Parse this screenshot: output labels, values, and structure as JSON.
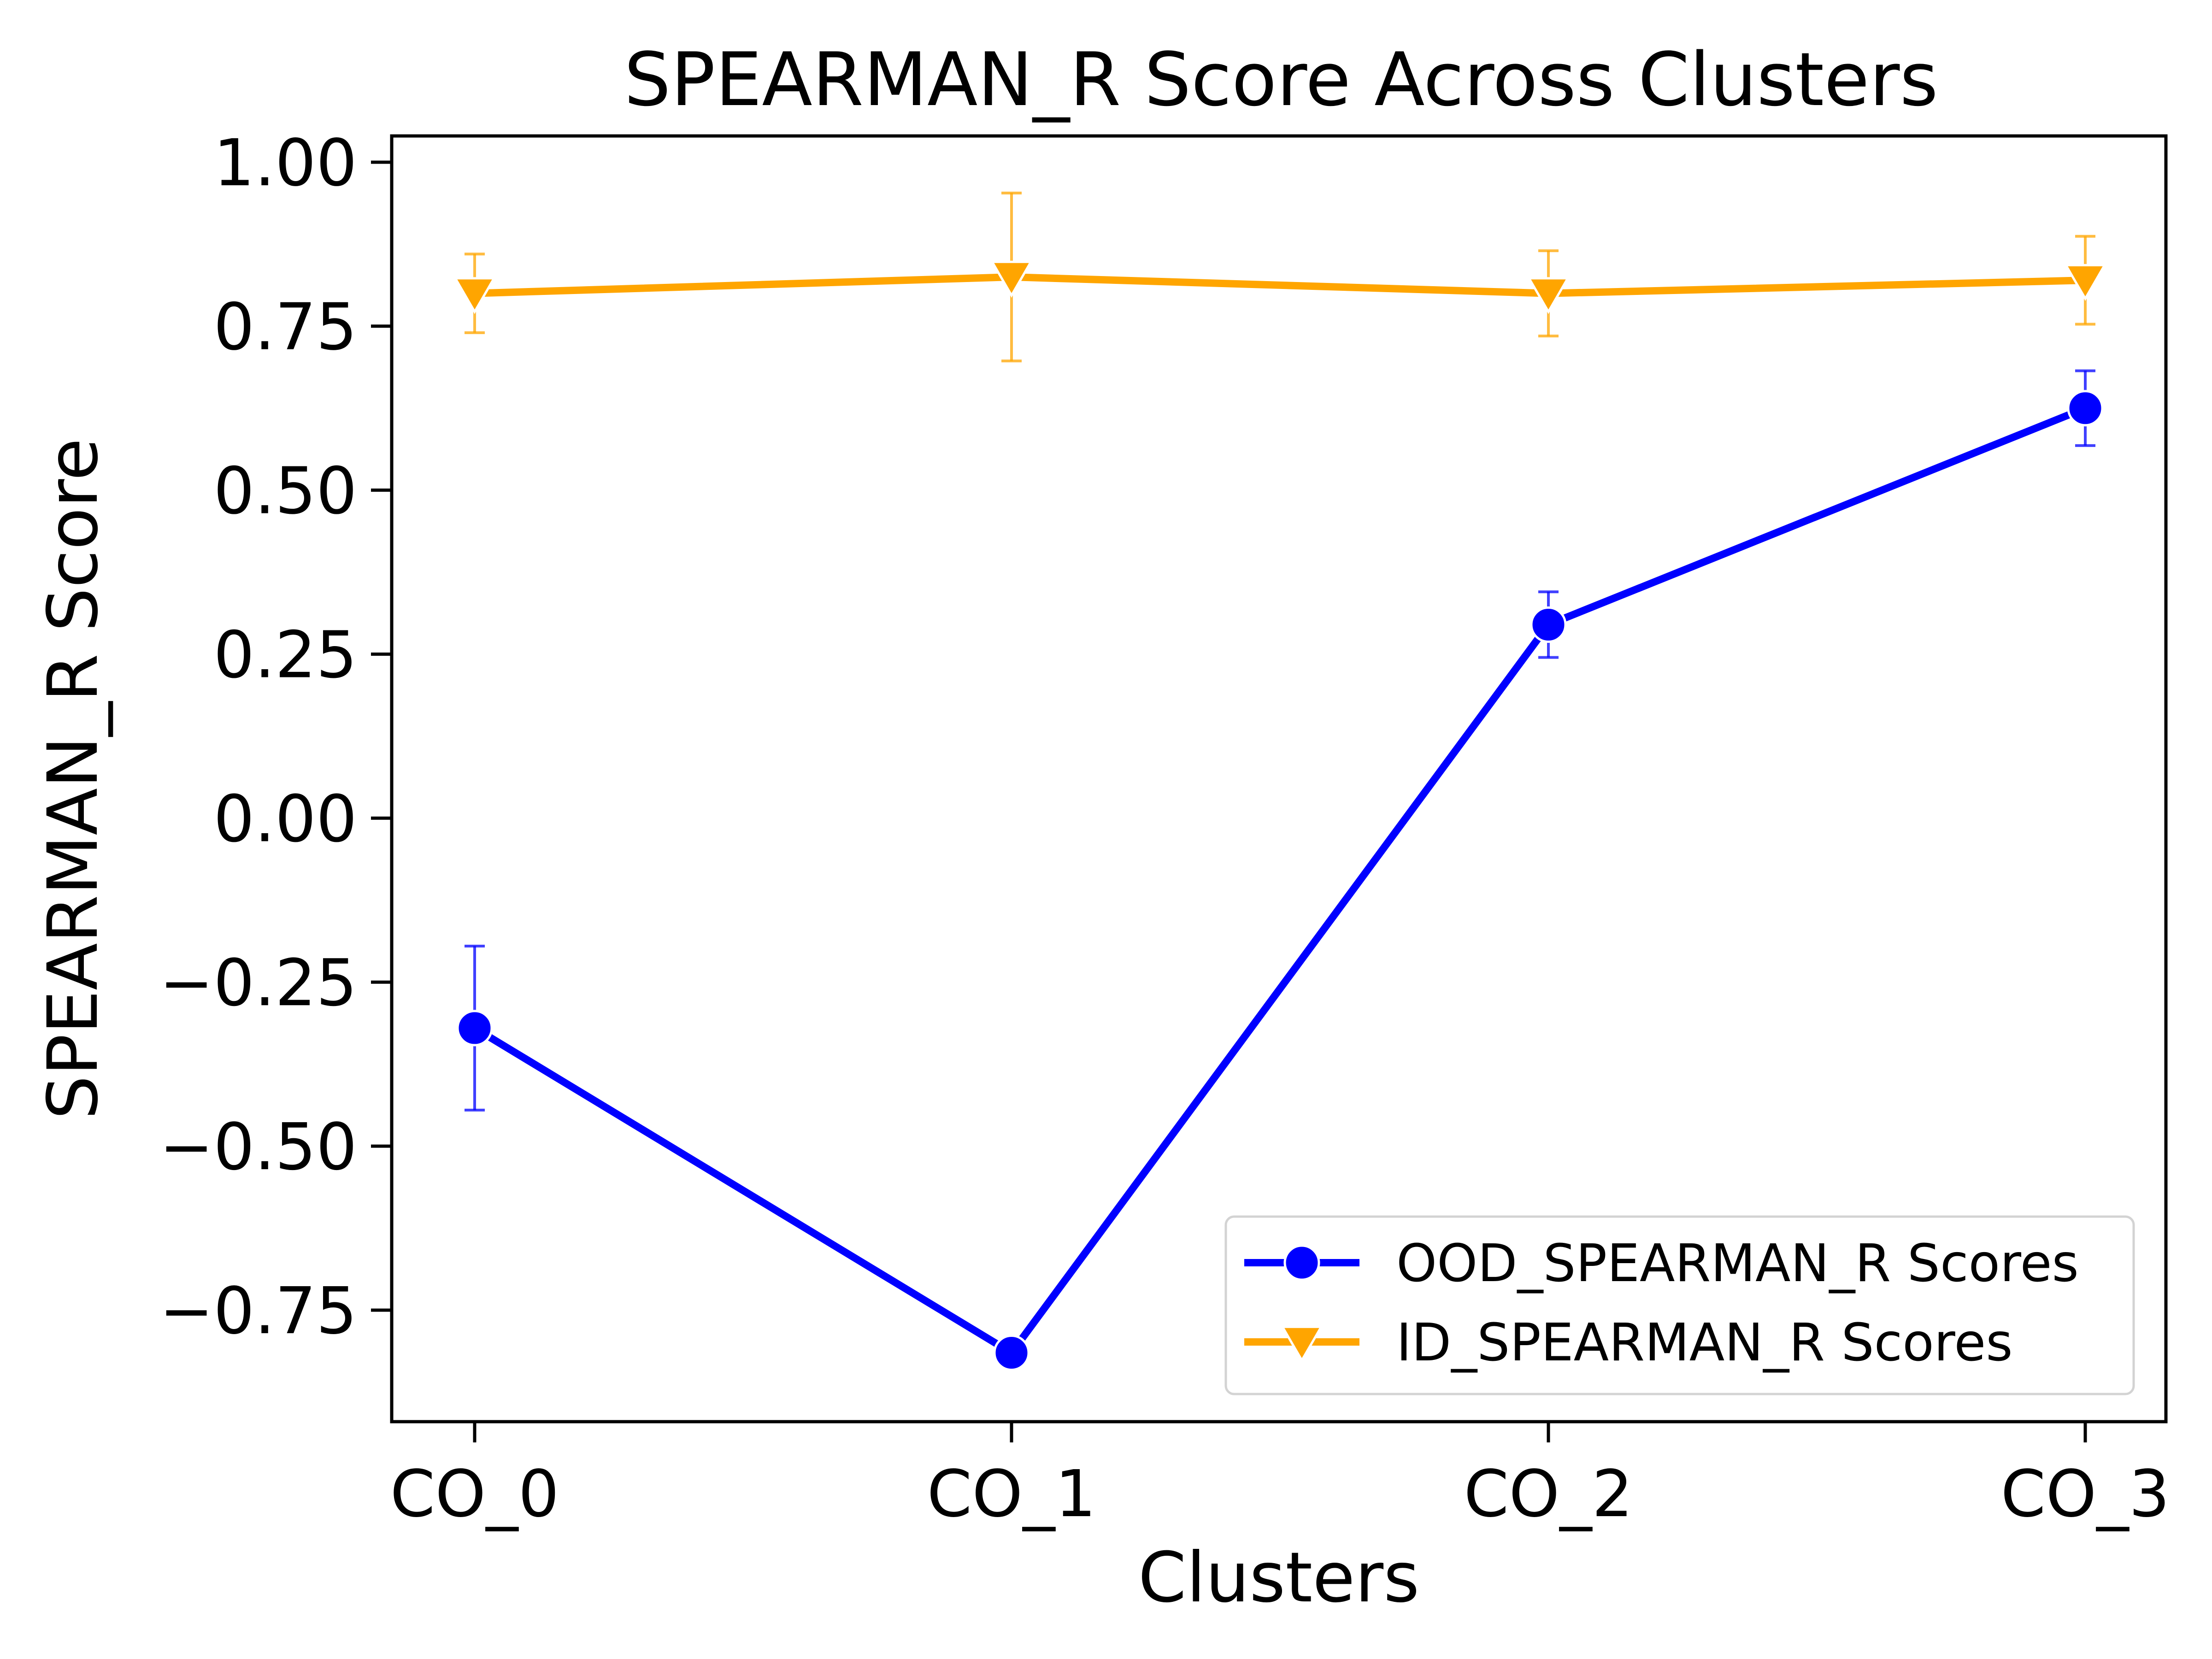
{
  "chart_data": {
    "type": "line",
    "title": "SPEARMAN_R Score Across Clusters",
    "xlabel": "Clusters",
    "ylabel": "SPEARMAN_R Score",
    "categories": [
      "CO_0",
      "CO_1",
      "CO_2",
      "CO_3"
    ],
    "ylim": [
      -0.92,
      1.04
    ],
    "yticks": [
      1.0,
      0.75,
      0.5,
      0.25,
      0.0,
      -0.25,
      -0.5,
      -0.75
    ],
    "ytick_labels": [
      "1.00",
      "0.75",
      "0.50",
      "0.25",
      "0.00",
      "−0.25",
      "−0.50",
      "−0.75"
    ],
    "grid": false,
    "legend_position": "lower-right",
    "series": [
      {
        "name": "OOD_SPEARMAN_R Scores",
        "color": "#0000ff",
        "marker": "circle",
        "values": [
          -0.32,
          -0.815,
          0.295,
          0.625
        ],
        "error": [
          0.125,
          0.01,
          0.05,
          0.057
        ]
      },
      {
        "name": "ID_SPEARMAN_R Scores",
        "color": "#ffa500",
        "marker": "triangle-down",
        "values": [
          0.8,
          0.825,
          0.8,
          0.82
        ],
        "error": [
          0.06,
          0.128,
          0.065,
          0.067
        ]
      }
    ]
  }
}
